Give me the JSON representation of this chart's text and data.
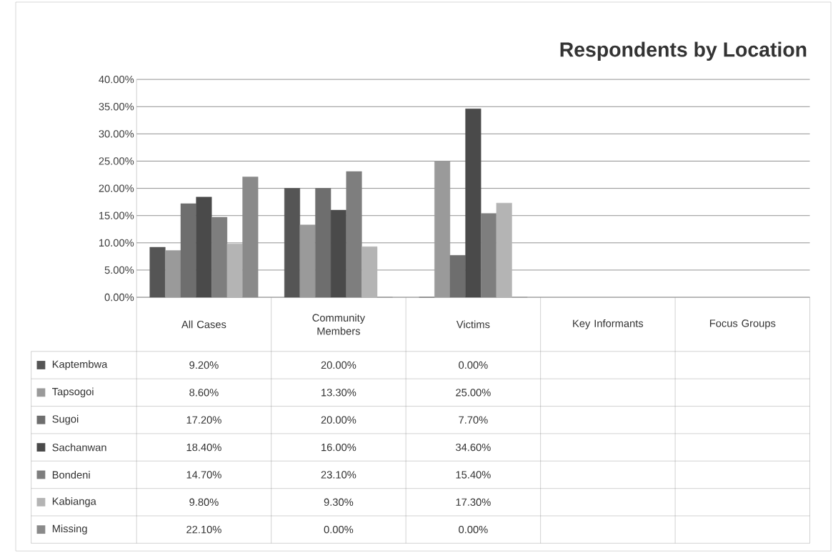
{
  "chart_data": {
    "type": "bar",
    "title": "Respondents by Location",
    "categories": [
      "All Cases",
      "Community Members",
      "Victims",
      "Key Informants",
      "Focus Groups"
    ],
    "ylim": [
      0,
      40
    ],
    "yticks": [
      {
        "value": 0,
        "label": "0.00%"
      },
      {
        "value": 5,
        "label": "5.00%"
      },
      {
        "value": 10,
        "label": "10.00%"
      },
      {
        "value": 15,
        "label": "15.00%"
      },
      {
        "value": 20,
        "label": "20.00%"
      },
      {
        "value": 25,
        "label": "25.00%"
      },
      {
        "value": 30,
        "label": "30.00%"
      },
      {
        "value": 35,
        "label": "35.00%"
      },
      {
        "value": 40,
        "label": "40.00%"
      }
    ],
    "grid": "y",
    "legend": "bottom",
    "series": [
      {
        "name": "Kaptembwa",
        "color": "#555555",
        "values": [
          9.2,
          20.0,
          0.0,
          null,
          null
        ],
        "value_labels": [
          "9.20%",
          "20.00%",
          "0.00%",
          null,
          null
        ]
      },
      {
        "name": "Tapsogoi",
        "color": "#9a9a9a",
        "values": [
          8.6,
          13.3,
          25.0,
          null,
          null
        ],
        "value_labels": [
          "8.60%",
          "13.30%",
          "25.00%",
          null,
          null
        ]
      },
      {
        "name": "Sugoi",
        "color": "#6e6e6e",
        "values": [
          17.2,
          20.0,
          7.7,
          null,
          null
        ],
        "value_labels": [
          "17.20%",
          "20.00%",
          "7.70%",
          null,
          null
        ]
      },
      {
        "name": "Sachanwan",
        "color": "#4a4a4a",
        "values": [
          18.4,
          16.0,
          34.6,
          null,
          null
        ],
        "value_labels": [
          "18.40%",
          "16.00%",
          "34.60%",
          null,
          null
        ]
      },
      {
        "name": "Bondeni",
        "color": "#7e7e7e",
        "values": [
          14.7,
          23.1,
          15.4,
          null,
          null
        ],
        "value_labels": [
          "14.70%",
          "23.10%",
          "15.40%",
          null,
          null
        ]
      },
      {
        "name": "Kabianga",
        "color": "#b4b4b4",
        "values": [
          9.8,
          9.3,
          17.3,
          null,
          null
        ],
        "value_labels": [
          "9.80%",
          "9.30%",
          "17.30%",
          null,
          null
        ]
      },
      {
        "name": "Missing",
        "color": "#8a8a8a",
        "values": [
          22.1,
          0.0,
          0.0,
          null,
          null
        ],
        "value_labels": [
          "22.10%",
          "0.00%",
          "0.00%",
          null,
          null
        ]
      }
    ]
  }
}
